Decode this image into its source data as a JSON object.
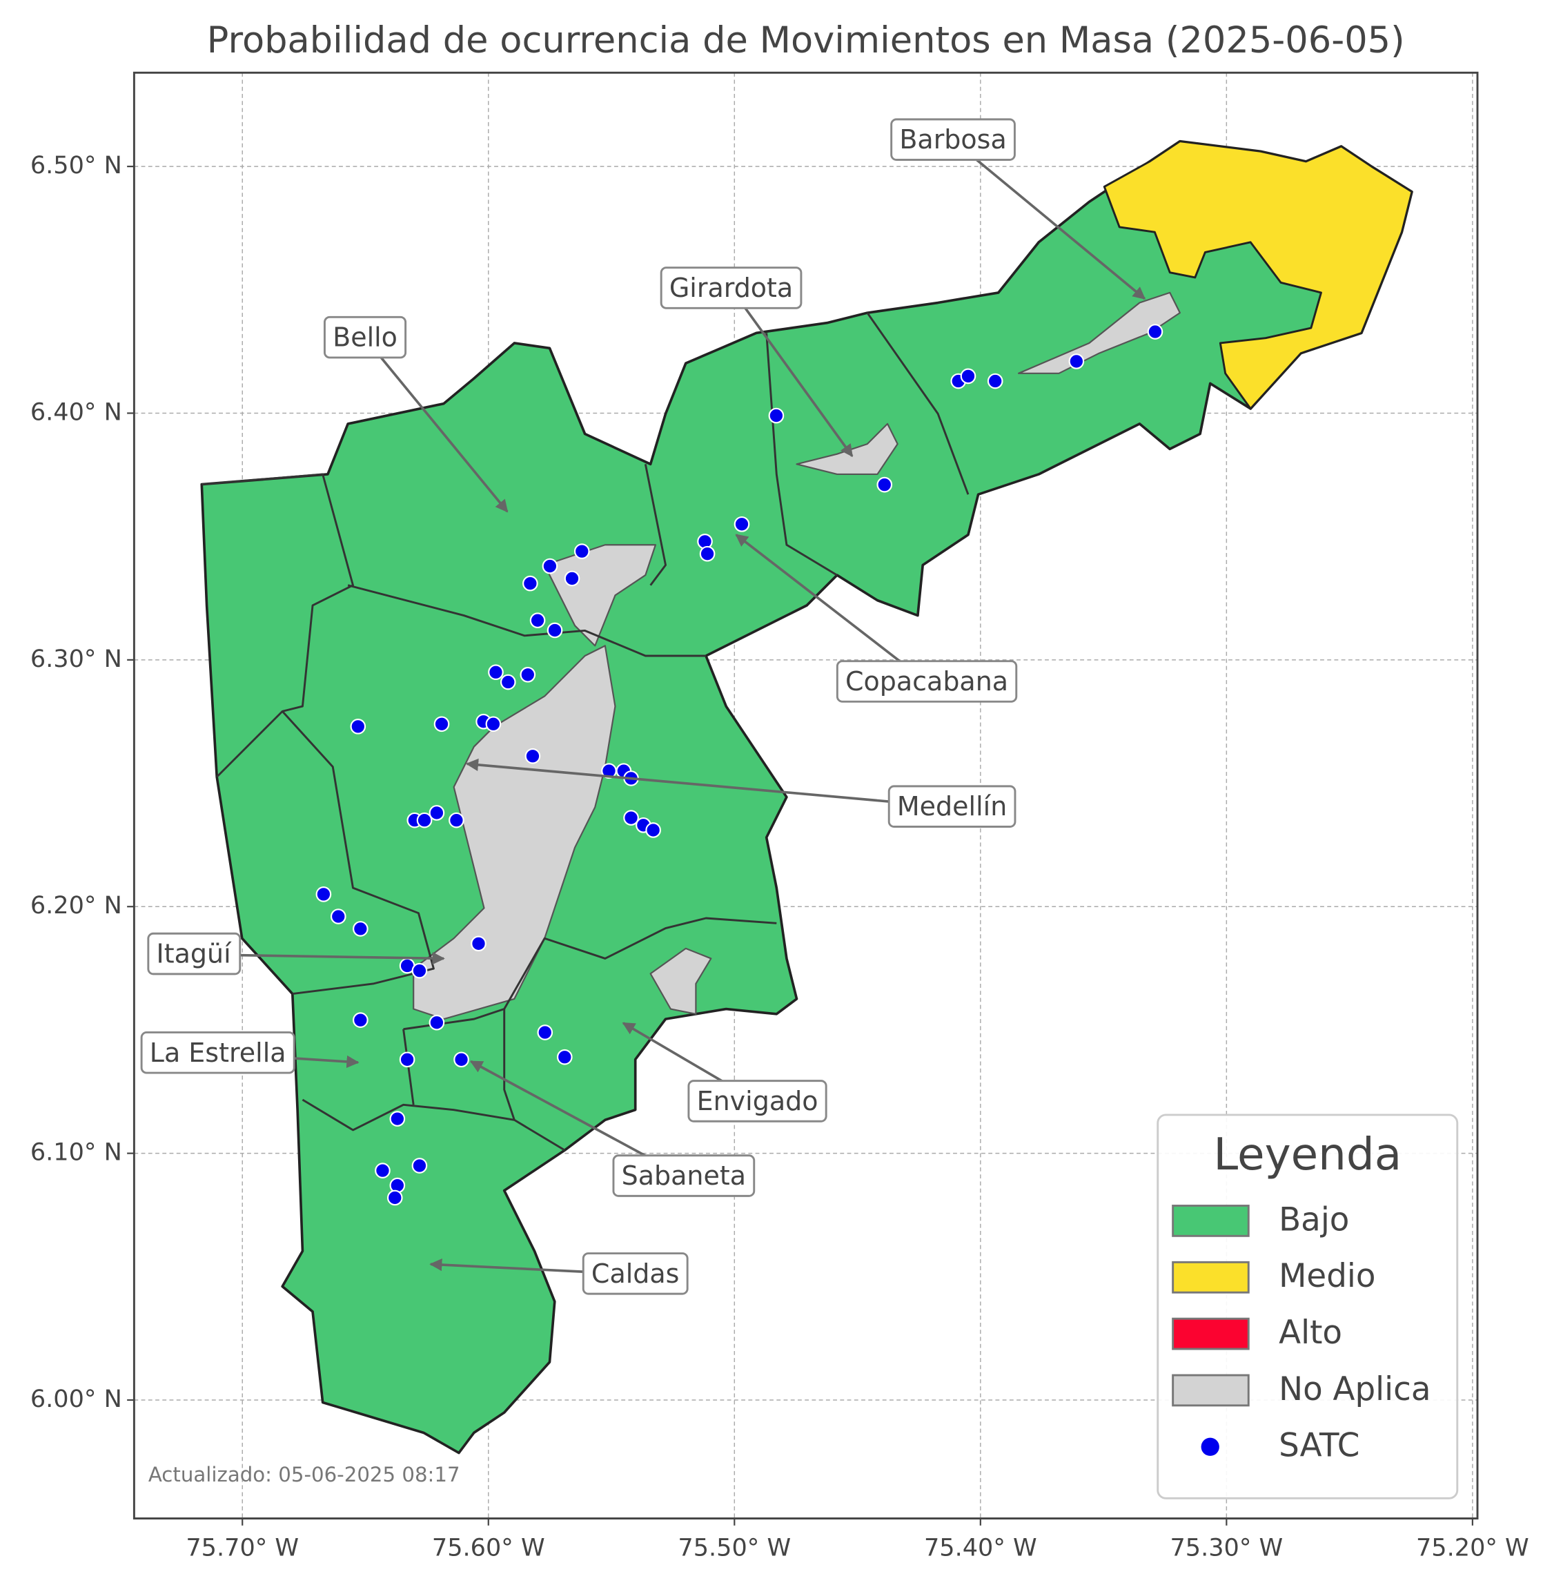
{
  "chart_data": {
    "type": "map",
    "title": "Probabilidad de ocurrencia de Movimientos en Masa (2025-06-05)",
    "xlim": [
      -75.744,
      -75.198
    ],
    "ylim": [
      5.952,
      6.538
    ],
    "xticks": [
      {
        "value": -75.7,
        "label": "75.70° W"
      },
      {
        "value": -75.6,
        "label": "75.60° W"
      },
      {
        "value": -75.5,
        "label": "75.50° W"
      },
      {
        "value": -75.4,
        "label": "75.40° W"
      },
      {
        "value": -75.3,
        "label": "75.30° W"
      },
      {
        "value": -75.2,
        "label": "75.20° W"
      }
    ],
    "yticks": [
      {
        "value": 6.0,
        "label": "6.00° N"
      },
      {
        "value": 6.1,
        "label": "6.10° N"
      },
      {
        "value": 6.2,
        "label": "6.20° N"
      },
      {
        "value": 6.3,
        "label": "6.30° N"
      },
      {
        "value": 6.4,
        "label": "6.40° N"
      },
      {
        "value": 6.5,
        "label": "6.50° N"
      }
    ],
    "grid": true,
    "legend": {
      "title": "Leyenda",
      "corner": "lower right",
      "items": [
        {
          "name": "Bajo",
          "color": "#48c774"
        },
        {
          "name": "Medio",
          "color": "#fbe02a"
        },
        {
          "name": "Alto",
          "color": "#fb0330"
        },
        {
          "name": "No Aplica",
          "color": "#d3d3d3"
        }
      ]
    },
    "series": [
      {
        "name": "SATC",
        "color": "#0000ee",
        "x": [
          -75.483,
          -75.409,
          -75.405,
          -75.394,
          -75.361,
          -75.329,
          -75.439,
          -75.497,
          -75.512,
          -75.511,
          -75.562,
          -75.575,
          -75.566,
          -75.583,
          -75.58,
          -75.573,
          -75.597,
          -75.592,
          -75.584,
          -75.653,
          -75.619,
          -75.602,
          -75.598,
          -75.582,
          -75.551,
          -75.545,
          -75.542,
          -75.542,
          -75.537,
          -75.533,
          -75.621,
          -75.613,
          -75.63,
          -75.626,
          -75.667,
          -75.661,
          -75.652,
          -75.604,
          -75.633,
          -75.628,
          -75.652,
          -75.621,
          -75.577,
          -75.569,
          -75.633,
          -75.611,
          -75.637,
          -75.643,
          -75.628,
          -75.637,
          -75.638
        ],
        "y": [
          6.399,
          6.413,
          6.415,
          6.413,
          6.421,
          6.433,
          6.371,
          6.355,
          6.348,
          6.343,
          6.344,
          6.338,
          6.333,
          6.331,
          6.316,
          6.312,
          6.295,
          6.291,
          6.294,
          6.273,
          6.274,
          6.275,
          6.274,
          6.261,
          6.255,
          6.255,
          6.252,
          6.236,
          6.233,
          6.231,
          6.238,
          6.235,
          6.235,
          6.235,
          6.205,
          6.196,
          6.191,
          6.185,
          6.176,
          6.174,
          6.154,
          6.153,
          6.149,
          6.139,
          6.138,
          6.138,
          6.114,
          6.093,
          6.095,
          6.087,
          6.082
        ]
      }
    ],
    "annotations": [
      "Barbosa",
      "Girardota",
      "Bello",
      "Copacabana",
      "Medellín",
      "Itagüí",
      "La Estrella",
      "Envigado",
      "Sabaneta",
      "Caldas"
    ],
    "footnote": "Actualizado: 05-06-2025 08:17"
  }
}
